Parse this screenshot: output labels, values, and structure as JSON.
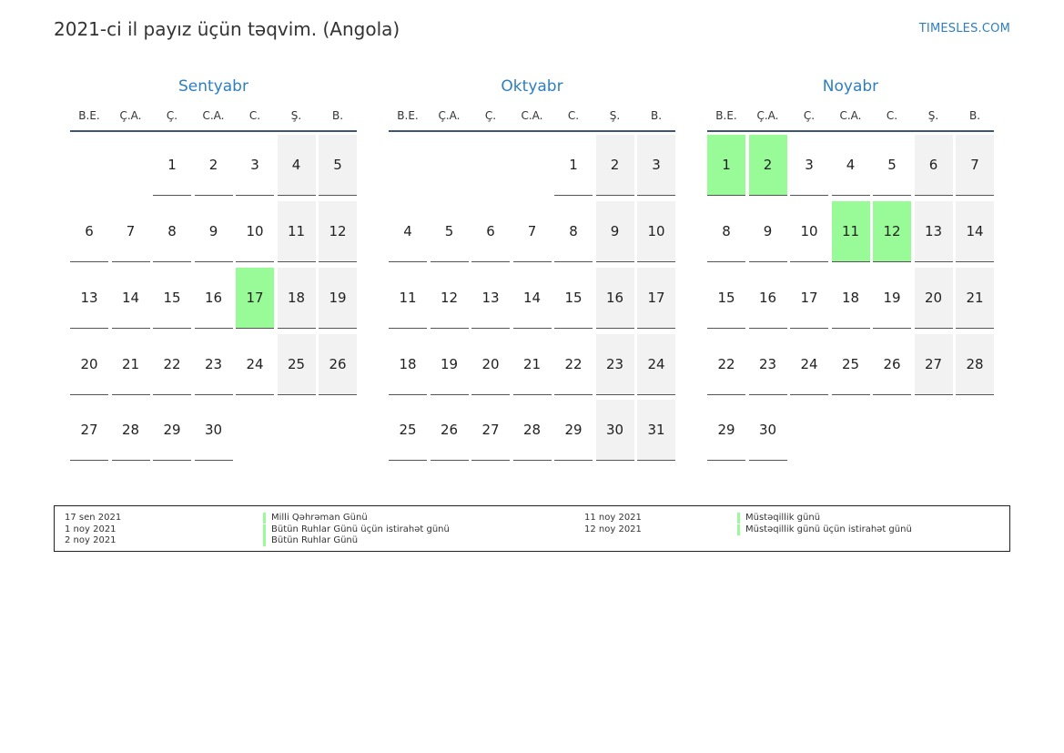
{
  "header": {
    "title": "2021-ci il payız üçün təqvim. (Angola)",
    "site": "TIMESLES.COM"
  },
  "weekdays": [
    "B.E.",
    "Ç.A.",
    "Ç.",
    "C.A.",
    "C.",
    "Ş.",
    "B."
  ],
  "colors": {
    "accent": "#2d7fc1",
    "holiday": "#98fb98",
    "weekend": "#f2f2f2"
  },
  "months": [
    {
      "name": "Sentyabr",
      "start_offset": 2,
      "days": 30,
      "holidays": [
        17
      ]
    },
    {
      "name": "Oktyabr",
      "start_offset": 4,
      "days": 31,
      "holidays": []
    },
    {
      "name": "Noyabr",
      "start_offset": 0,
      "days": 30,
      "holidays": [
        1,
        2,
        11,
        12
      ]
    }
  ],
  "legend": {
    "left": [
      {
        "date": "17 sen 2021",
        "name": "Milli Qəhrəman Günü"
      },
      {
        "date": "1 noy 2021",
        "name": "Bütün Ruhlar Günü üçün istirahət günü"
      },
      {
        "date": "2 noy 2021",
        "name": "Bütün Ruhlar Günü"
      }
    ],
    "right": [
      {
        "date": "11 noy 2021",
        "name": "Müstəqillik günü"
      },
      {
        "date": "12 noy 2021",
        "name": "Müstəqillik günü üçün istirahət günü"
      }
    ]
  }
}
